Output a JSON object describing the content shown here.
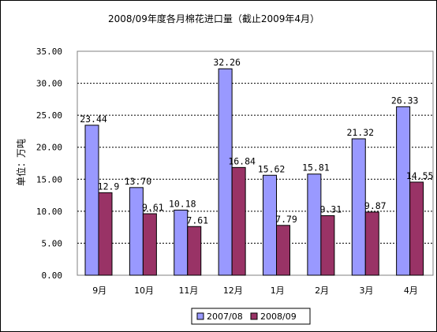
{
  "chart_data": {
    "type": "bar",
    "title": "2008/09年度各月棉花进口量（截止2009年4月）",
    "ylabel": "单位：万吨",
    "xlabel": "",
    "ylim": [
      0,
      35
    ],
    "yticks": [
      "0.00",
      "5.00",
      "10.00",
      "15.00",
      "20.00",
      "25.00",
      "30.00",
      "35.00"
    ],
    "grid": true,
    "legend_position": "bottom",
    "categories": [
      "9月",
      "10月",
      "11月",
      "12月",
      "1月",
      "2月",
      "3月",
      "4月"
    ],
    "series": [
      {
        "name": "2007/08",
        "color": "#9999ff",
        "values": [
          23.44,
          13.7,
          10.18,
          32.26,
          15.62,
          15.81,
          21.32,
          26.33
        ],
        "labels": [
          "23.44",
          "13.70",
          "10.18",
          "32.26",
          "15.62",
          "15.81",
          "21.32",
          "26.33"
        ]
      },
      {
        "name": "2008/09",
        "color": "#993366",
        "values": [
          12.9,
          9.61,
          7.61,
          16.84,
          7.79,
          9.31,
          9.87,
          14.55
        ],
        "labels": [
          "12.9",
          "9.61",
          "7.61",
          "16.84",
          "7.79",
          "9.31",
          "9.87",
          "14.55"
        ]
      }
    ]
  }
}
